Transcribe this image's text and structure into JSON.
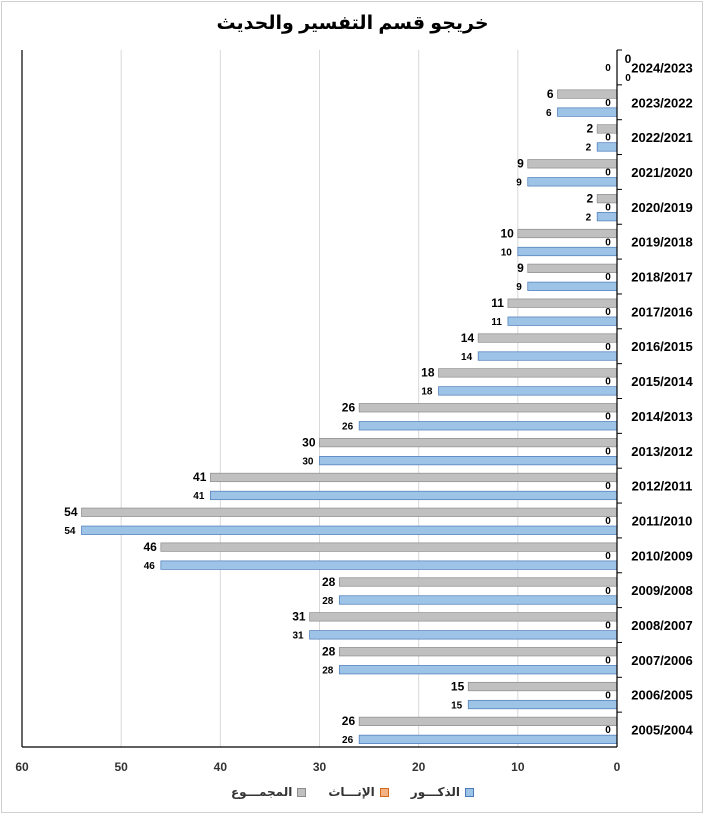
{
  "chart_data": {
    "type": "bar",
    "orientation": "horizontal",
    "title": "خريجو قسم التفسير والحديث",
    "categories": [
      "2024/2023",
      "2023/2022",
      "2022/2021",
      "2021/2020",
      "2020/2019",
      "2019/2018",
      "2018/2017",
      "2017/2016",
      "2016/2015",
      "2015/2014",
      "2014/2013",
      "2013/2012",
      "2012/2011",
      "2011/2010",
      "2010/2009",
      "2009/2008",
      "2008/2007",
      "2007/2006",
      "2006/2005",
      "2005/2004"
    ],
    "series": [
      {
        "name": "المجمـــوع",
        "color": "#c0c0c0",
        "values": [
          0,
          6,
          2,
          9,
          2,
          10,
          9,
          11,
          14,
          18,
          26,
          30,
          41,
          54,
          46,
          28,
          31,
          28,
          15,
          26
        ]
      },
      {
        "name": "الإنـــاث",
        "color": "#f4b183",
        "values": [
          0,
          0,
          0,
          0,
          0,
          0,
          0,
          0,
          0,
          0,
          0,
          0,
          0,
          0,
          0,
          0,
          0,
          0,
          0,
          0
        ]
      },
      {
        "name": "الذكـــور",
        "color": "#9dc3e6",
        "values": [
          0,
          6,
          2,
          9,
          2,
          10,
          9,
          11,
          14,
          18,
          26,
          30,
          41,
          54,
          46,
          28,
          31,
          28,
          15,
          26
        ]
      }
    ],
    "x_axis": {
      "reversed": true,
      "range": [
        0,
        60
      ],
      "ticks": [
        "0",
        "10",
        "20",
        "30",
        "40",
        "50",
        "60"
      ]
    },
    "grid": true,
    "legend_position": "bottom"
  }
}
